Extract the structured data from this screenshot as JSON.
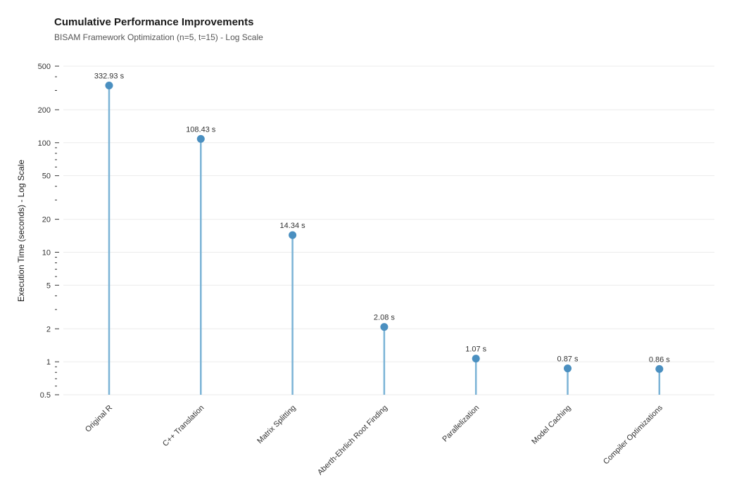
{
  "chart_data": {
    "type": "lollipop",
    "title": "Cumulative Performance Improvements",
    "subtitle": "BISAM Framework Optimization (n=5, t=15) - Log Scale",
    "ylabel": "Execution Time (seconds) - Log Scale",
    "xlabel": "",
    "y_scale": "log",
    "ylim": [
      0.5,
      500
    ],
    "y_ticks": [
      0.5,
      1,
      2,
      5,
      10,
      20,
      50,
      100,
      200,
      500
    ],
    "y_tick_labels": [
      "0.5",
      "1",
      "2",
      "5",
      "10",
      "20",
      "50",
      "100",
      "200",
      "500"
    ],
    "y_minor_ticks": [
      0.6,
      0.7,
      0.8,
      0.9,
      3,
      4,
      6,
      7,
      8,
      9,
      30,
      40,
      60,
      70,
      80,
      90,
      300,
      400
    ],
    "grid": true,
    "legend": "none",
    "categories": [
      "Original R",
      "C++ Translation",
      "Matrix Splitting",
      "Aberth-Ehrlich Root Finding",
      "Parallelization",
      "Model Caching",
      "Compiler Optimizations"
    ],
    "values": [
      332.93,
      108.43,
      14.34,
      2.08,
      1.07,
      0.87,
      0.86
    ],
    "value_labels": [
      "332.93 s",
      "108.43 s",
      "14.34 s",
      "2.08 s",
      "1.07 s",
      "0.87 s",
      "0.86 s"
    ],
    "colors": {
      "point": "#4a8fc0",
      "stem": "#7bb3d6",
      "grid": "#ebebeb"
    }
  }
}
